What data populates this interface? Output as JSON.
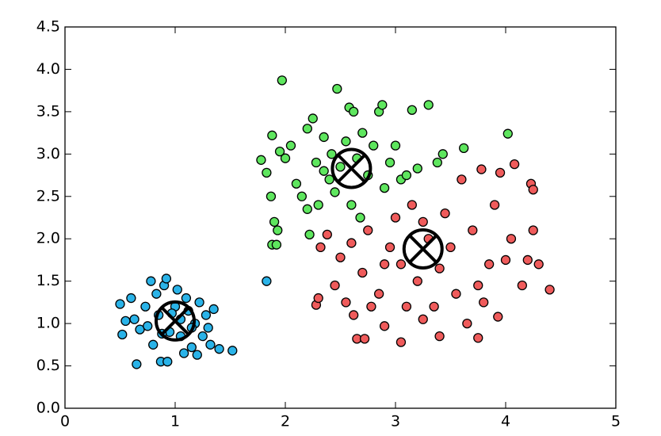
{
  "chart_data": {
    "type": "scatter",
    "xlim": [
      0,
      5
    ],
    "ylim": [
      0,
      4.5
    ],
    "xticks": [
      0,
      1,
      2,
      3,
      4,
      5
    ],
    "yticks": [
      {
        "value": 0,
        "label": "0.0"
      },
      0.5,
      {
        "value": 1,
        "label": "1.0"
      },
      1.5,
      {
        "value": 2,
        "label": "2.0"
      },
      2.5,
      {
        "value": 3,
        "label": "3.0"
      },
      3.5,
      {
        "value": 4,
        "label": "4.0"
      },
      4.5
    ],
    "grid": false,
    "series": [
      {
        "color": "#2ab3e8",
        "x": [
          0.5,
          0.55,
          0.52,
          0.6,
          0.63,
          0.65,
          0.68,
          0.73,
          0.78,
          0.8,
          0.83,
          0.85,
          0.87,
          0.9,
          0.93,
          0.92,
          0.95,
          1.0,
          1.02,
          1.05,
          1.08,
          1.1,
          1.12,
          1.15,
          1.18,
          1.2,
          1.22,
          1.25,
          1.28,
          1.3,
          1.35,
          1.32,
          1.4,
          1.52,
          1.83,
          0.75,
          1.05,
          0.97,
          1.15,
          0.88
        ],
        "y": [
          1.23,
          1.03,
          0.87,
          1.3,
          1.05,
          0.52,
          0.93,
          1.2,
          1.5,
          0.75,
          1.35,
          1.1,
          0.55,
          1.45,
          0.55,
          1.53,
          0.9,
          1.2,
          1.4,
          0.85,
          0.65,
          1.3,
          1.15,
          0.72,
          1.0,
          0.63,
          1.25,
          0.85,
          1.1,
          0.95,
          1.17,
          0.75,
          0.7,
          0.68,
          1.5,
          0.97,
          1.05,
          1.12,
          0.95,
          0.88
        ]
      },
      {
        "color": "#5ee65e",
        "x": [
          1.78,
          1.83,
          1.87,
          1.88,
          1.9,
          1.97,
          1.95,
          1.88,
          1.92,
          1.93,
          2.0,
          2.05,
          2.1,
          2.15,
          2.2,
          2.22,
          2.25,
          2.28,
          2.3,
          2.35,
          2.4,
          2.42,
          2.45,
          2.47,
          2.5,
          2.55,
          2.58,
          2.6,
          2.62,
          2.65,
          2.68,
          2.7,
          2.75,
          2.8,
          2.85,
          2.88,
          2.9,
          2.95,
          3.0,
          3.05,
          3.1,
          3.15,
          3.2,
          3.3,
          3.38,
          3.43,
          3.62,
          4.02,
          2.2,
          2.35
        ],
        "y": [
          2.93,
          2.78,
          2.5,
          3.22,
          2.2,
          3.87,
          3.03,
          1.93,
          1.93,
          2.1,
          2.95,
          3.1,
          2.65,
          2.5,
          3.3,
          2.05,
          3.42,
          2.9,
          2.4,
          3.2,
          2.7,
          3.0,
          2.55,
          3.77,
          2.85,
          3.15,
          3.55,
          2.4,
          3.5,
          2.95,
          2.25,
          3.25,
          2.75,
          3.1,
          3.5,
          3.58,
          2.6,
          2.9,
          3.1,
          2.7,
          2.75,
          3.52,
          2.83,
          3.58,
          2.9,
          3.0,
          3.07,
          3.24,
          2.35,
          2.8
        ]
      },
      {
        "color": "#ef5b5b",
        "x": [
          2.28,
          2.3,
          2.32,
          2.38,
          2.45,
          2.5,
          2.55,
          2.6,
          2.62,
          2.65,
          2.72,
          2.7,
          2.75,
          2.78,
          2.85,
          2.9,
          2.95,
          3.0,
          3.05,
          3.05,
          3.1,
          3.15,
          3.2,
          3.25,
          3.3,
          3.35,
          3.4,
          3.4,
          3.45,
          3.5,
          3.55,
          3.6,
          3.65,
          3.7,
          3.75,
          3.75,
          3.78,
          3.85,
          3.9,
          3.93,
          3.95,
          4.0,
          4.05,
          4.08,
          4.15,
          4.2,
          4.23,
          4.25,
          4.25,
          4.3,
          4.4,
          3.8,
          2.9,
          3.25
        ],
        "y": [
          1.22,
          1.3,
          1.9,
          2.05,
          1.45,
          1.78,
          1.25,
          1.95,
          1.1,
          0.82,
          0.82,
          1.6,
          2.1,
          1.2,
          1.35,
          0.97,
          1.9,
          2.25,
          0.78,
          1.7,
          1.2,
          2.4,
          1.5,
          1.05,
          2.0,
          1.2,
          1.65,
          0.85,
          2.3,
          1.9,
          1.35,
          2.7,
          1.0,
          2.1,
          1.45,
          0.83,
          2.82,
          1.7,
          2.4,
          1.08,
          2.78,
          1.75,
          2.0,
          2.88,
          1.45,
          1.75,
          2.65,
          2.58,
          2.1,
          1.7,
          1.4,
          1.25,
          1.7,
          2.2
        ]
      }
    ],
    "centroids": {
      "x": [
        1.0,
        2.6,
        3.25
      ],
      "y": [
        1.03,
        2.83,
        1.88
      ]
    }
  }
}
